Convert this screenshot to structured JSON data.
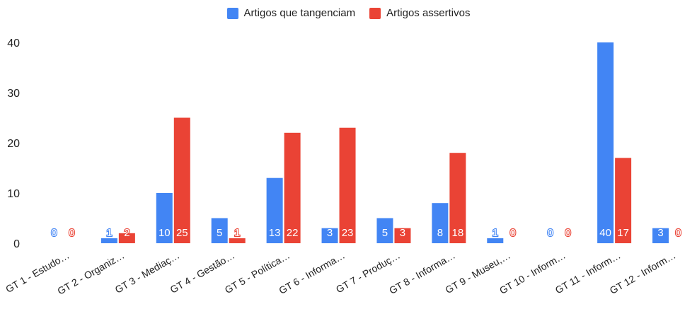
{
  "chart_data": {
    "type": "bar",
    "categories": [
      "GT 1 - Estudo…",
      "GT 2 - Organiz…",
      "GT 3 - Mediaç…",
      "GT 4 - Gestão…",
      "GT 5 - Política…",
      "GT 6 - Informa…",
      "GT 7 - Produç…",
      "GT 8 - Informa…",
      "GT 9 - Museu,…",
      "GT 10 - Inform…",
      "GT 11 - Inform…",
      "GT 12 - Inform…"
    ],
    "series": [
      {
        "name": "Artigos que tangenciam",
        "color": "#4285f4",
        "values": [
          0,
          1,
          10,
          5,
          13,
          3,
          5,
          8,
          1,
          0,
          40,
          3
        ]
      },
      {
        "name": "Artigos assertivos",
        "color": "#ea4335",
        "values": [
          0,
          2,
          25,
          1,
          22,
          23,
          3,
          18,
          0,
          0,
          17,
          0
        ]
      }
    ],
    "ylim": [
      0,
      40
    ],
    "yticks": [
      "0",
      "10",
      "20",
      "30",
      "40"
    ],
    "legend_position": "top-center",
    "grid": false,
    "data_labels": true
  }
}
